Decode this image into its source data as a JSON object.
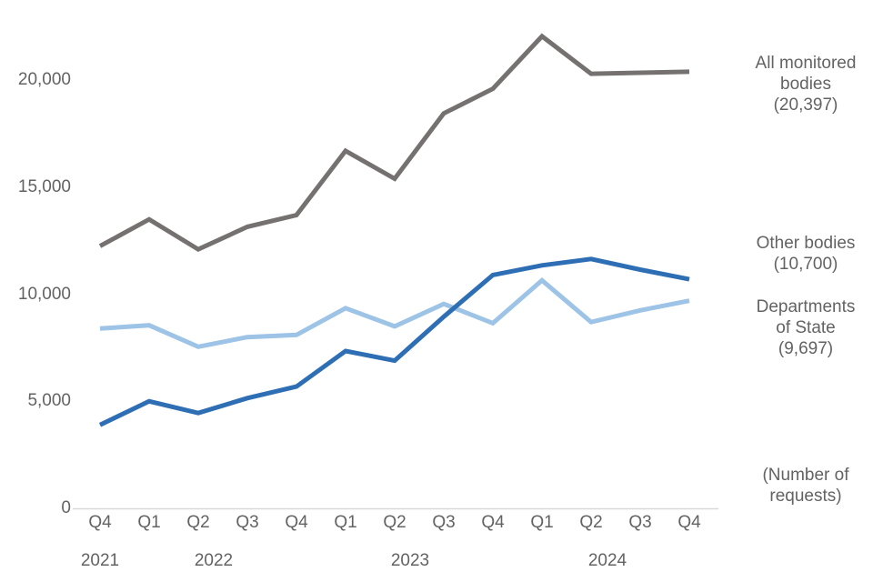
{
  "chart_data": {
    "type": "line",
    "title": "",
    "ylabel": "(Number of requests)",
    "grid": false,
    "legend_position": "right-annotations",
    "ylim": [
      0,
      23700
    ],
    "y_ticks": [
      0,
      5000,
      10000,
      15000,
      20000
    ],
    "y_tick_labels": [
      "0",
      "5,000",
      "10,000",
      "15,000",
      "20,000"
    ],
    "x_quarters": [
      "Q4",
      "Q1",
      "Q2",
      "Q3",
      "Q4",
      "Q1",
      "Q2",
      "Q3",
      "Q4",
      "Q1",
      "Q2",
      "Q3",
      "Q4"
    ],
    "x_years": [
      {
        "label": "2021",
        "quarters": [
          "Q4"
        ]
      },
      {
        "label": "2022",
        "quarters": [
          "Q1",
          "Q2",
          "Q3",
          "Q4"
        ]
      },
      {
        "label": "2023",
        "quarters": [
          "Q1",
          "Q2",
          "Q3",
          "Q4"
        ]
      },
      {
        "label": "2024",
        "quarters": [
          "Q1",
          "Q2",
          "Q3",
          "Q4"
        ]
      }
    ],
    "series": [
      {
        "name": "All monitored bodies",
        "color": "#767171",
        "final_value": 20397,
        "values": [
          12250,
          13500,
          12100,
          13150,
          13700,
          16700,
          15400,
          18450,
          19600,
          22050,
          20300,
          20350,
          20397
        ]
      },
      {
        "name": "Other bodies",
        "color": "#2E6EB4",
        "final_value": 10700,
        "values": [
          3900,
          5000,
          4450,
          5150,
          5690,
          7350,
          6900,
          8950,
          10900,
          11350,
          11650,
          11150,
          10700
        ]
      },
      {
        "name": "Departments of State",
        "color": "#9DC3E6",
        "final_value": 9697,
        "values": [
          8400,
          8550,
          7550,
          8000,
          8100,
          9350,
          8500,
          9550,
          8650,
          10650,
          8700,
          9250,
          9697
        ]
      }
    ],
    "annotations": [
      {
        "id": "all-monitored-bodies",
        "lines": [
          "All monitored",
          "bodies",
          "(20,397)"
        ]
      },
      {
        "id": "other-bodies",
        "lines": [
          "Other bodies",
          "(10,700)"
        ]
      },
      {
        "id": "departments-of-state",
        "lines": [
          "Departments",
          "of State",
          "(9,697)"
        ]
      },
      {
        "id": "number-of-requests",
        "lines": [
          "(Number of",
          "requests)"
        ]
      }
    ],
    "colors": {
      "axis_line": "#D9D9D9",
      "tick_text": "#636363",
      "annotation_text": "#636363",
      "background": "#FFFFFF"
    }
  }
}
